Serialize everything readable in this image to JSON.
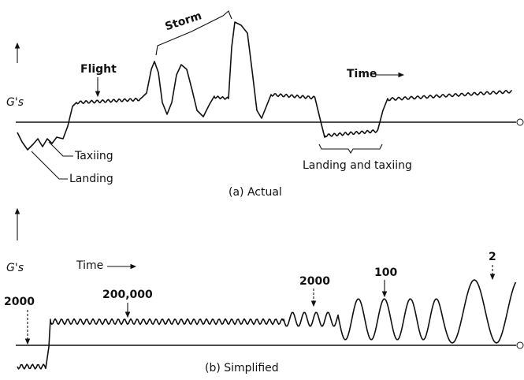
{
  "panels": [
    {
      "caption": "(a) Actual",
      "axis_label": "G's",
      "time_label": "Time",
      "annotations": [
        "Flight",
        "Storm",
        "Taxiing",
        "Landing",
        "Landing and taxiing"
      ]
    },
    {
      "caption": "(b) Simplified",
      "axis_label": "G's",
      "time_label": "Time",
      "annotations": [
        "2000",
        "200,000",
        "2000",
        "100",
        "2"
      ]
    }
  ]
}
